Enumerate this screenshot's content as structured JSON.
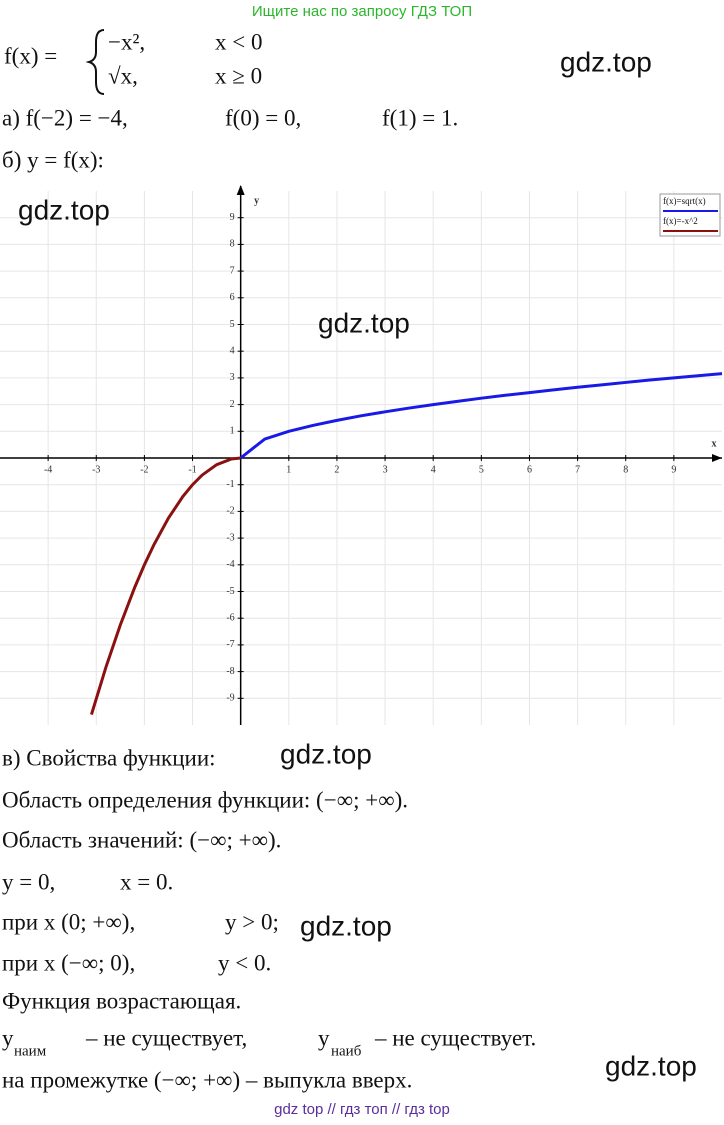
{
  "header": "Ищите нас по запросу ГДЗ ТОП",
  "watermarks": [
    "gdz.top",
    "gdz.top",
    "gdz.top",
    "gdz.top",
    "gdz.top",
    "gdz.top"
  ],
  "definition": {
    "lhs": "f(x) =",
    "cases": [
      [
        "−x²,",
        "x < 0"
      ],
      [
        "√x,",
        "x ≥ 0"
      ]
    ]
  },
  "part_a": [
    "а) f(−2) = −4,",
    "f(0) = 0,",
    "f(1) = 1."
  ],
  "part_b": "б) y = f(x):",
  "chart_data": {
    "type": "line",
    "x_label": "x",
    "y_label": "y",
    "xlim": [
      -5,
      10
    ],
    "ylim": [
      -10,
      10
    ],
    "xticks": [
      -4,
      -3,
      -2,
      -1,
      1,
      2,
      3,
      4,
      5,
      6,
      7,
      8,
      9
    ],
    "yticks": [
      -9,
      -8,
      -7,
      -6,
      -5,
      -4,
      -3,
      -2,
      -1,
      1,
      2,
      3,
      4,
      5,
      6,
      7,
      8,
      9
    ],
    "grid": true,
    "legend": "top-right",
    "series": [
      {
        "name": "f(x)=sqrt(x)",
        "color": "#1a1ae6",
        "x": [
          0,
          0.5,
          1,
          1.5,
          2,
          2.5,
          3,
          3.5,
          4,
          4.5,
          5,
          5.5,
          6,
          6.5,
          7,
          7.5,
          8,
          8.5,
          9,
          9.5,
          10
        ],
        "values": [
          0,
          0.71,
          1,
          1.22,
          1.41,
          1.58,
          1.73,
          1.87,
          2,
          2.12,
          2.24,
          2.35,
          2.45,
          2.55,
          2.65,
          2.74,
          2.83,
          2.92,
          3,
          3.08,
          3.16
        ]
      },
      {
        "name": "f(x)=-x^2",
        "color": "#8b1010",
        "x": [
          -3.1,
          -2.8,
          -2.5,
          -2.2,
          -2,
          -1.8,
          -1.5,
          -1.2,
          -1,
          -0.8,
          -0.5,
          -0.2,
          0
        ],
        "values": [
          -9.61,
          -7.84,
          -6.25,
          -4.84,
          -4,
          -3.24,
          -2.25,
          -1.44,
          -1,
          -0.64,
          -0.25,
          -0.04,
          0
        ]
      }
    ]
  },
  "properties": {
    "title": "в) Свойства функции:",
    "domain": "Область определения функции: (−∞; +∞).",
    "range": "Область значений: (−∞; +∞).",
    "zeros": [
      "y = 0,",
      "x = 0."
    ],
    "positive": [
      "при x (0; +∞),",
      "y > 0;"
    ],
    "negative": [
      "при x (−∞; 0),",
      "y < 0."
    ],
    "monotonic": "Функция возрастающая.",
    "extrema": [
      "y",
      "наим",
      "– не существует,",
      "y",
      "наиб",
      "– не существует."
    ],
    "convexity": "на промежутке (−∞; +∞) – выпукла вверх."
  },
  "footer": "gdz top  //  гдз топ  //  гдз top"
}
